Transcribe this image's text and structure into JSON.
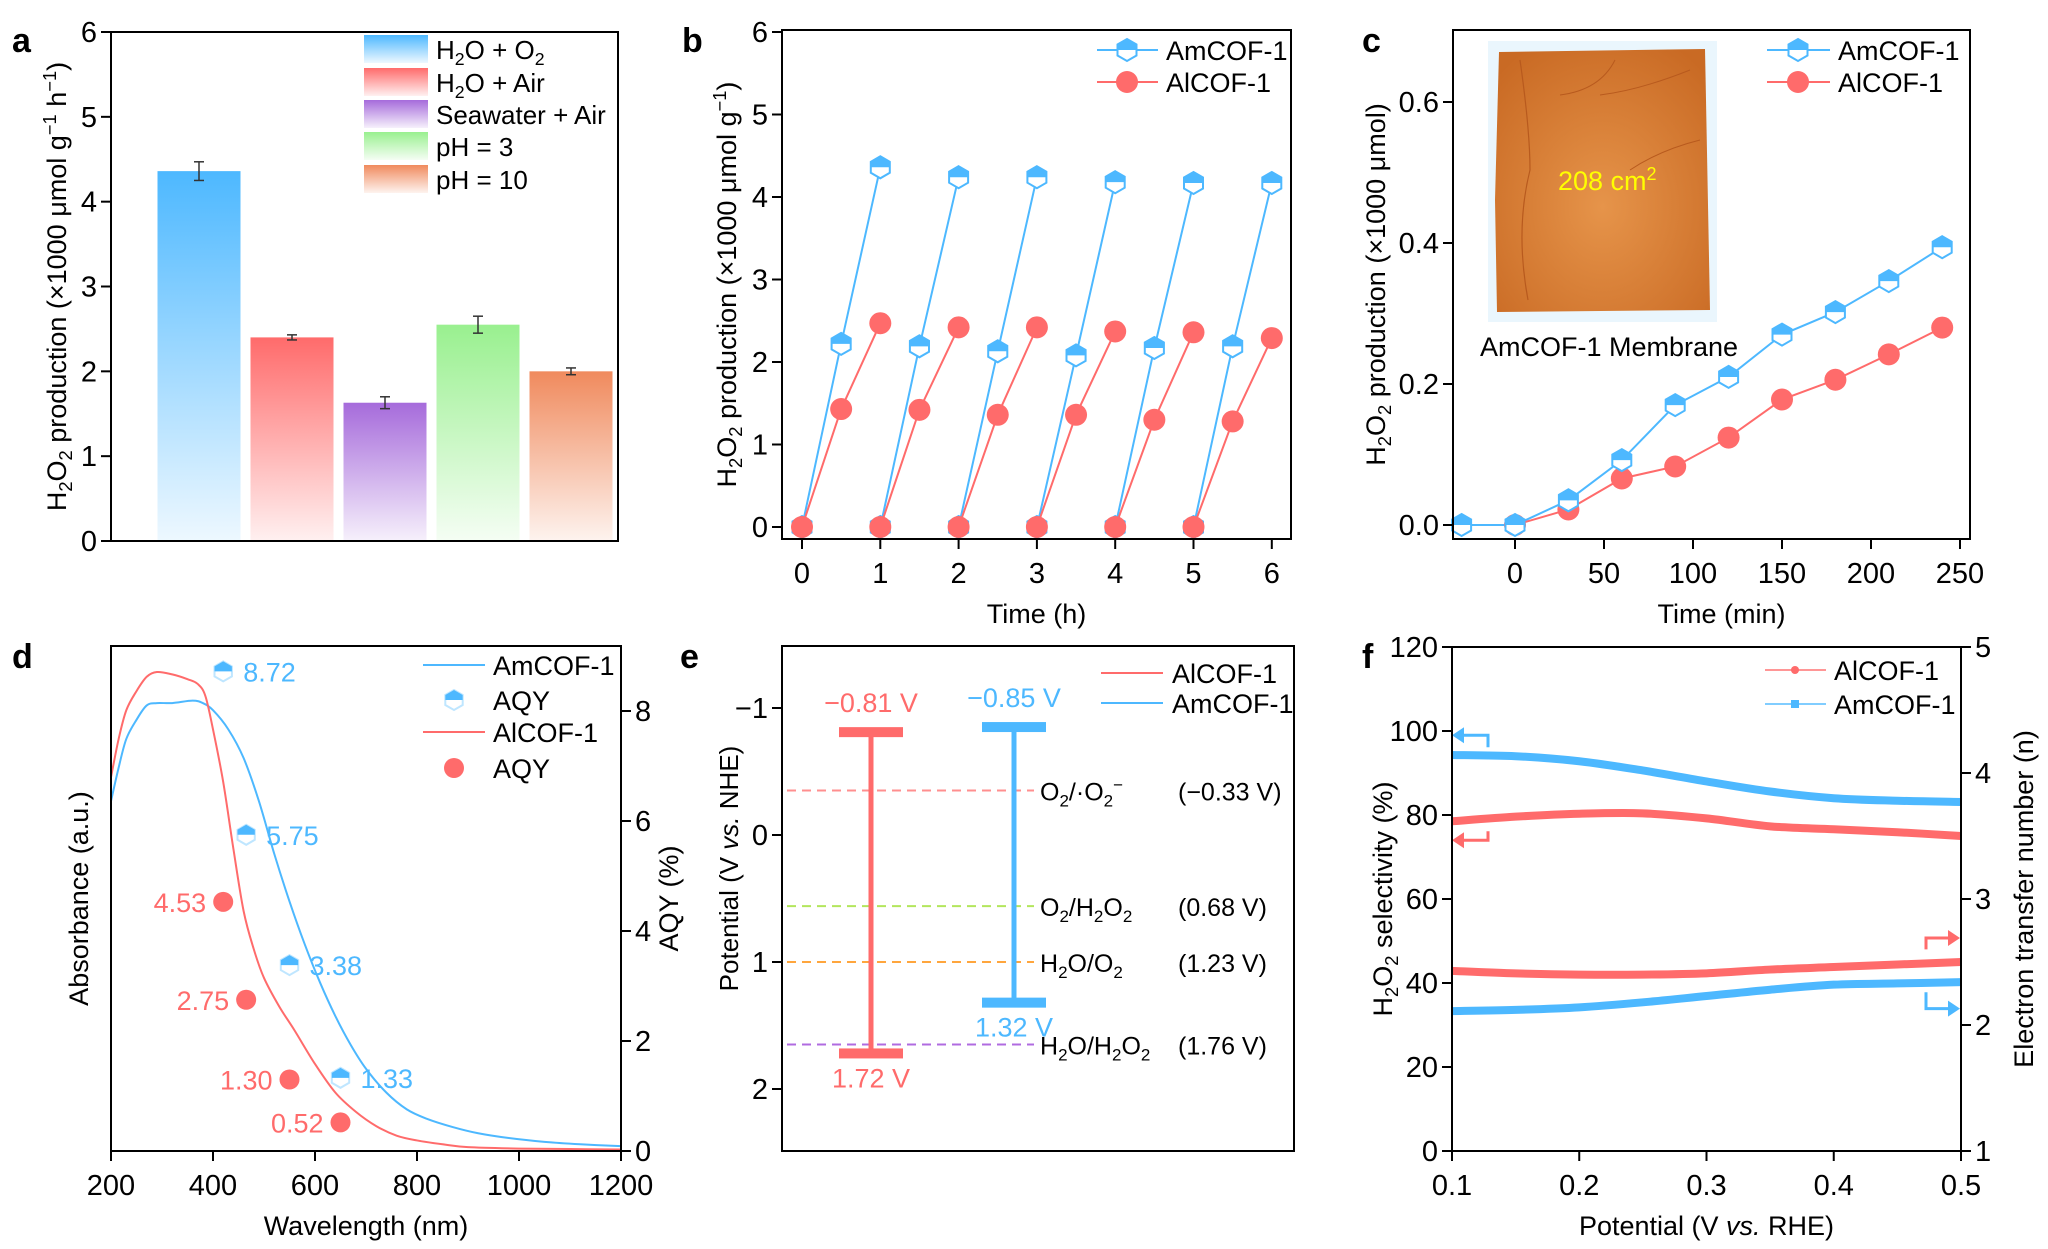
{
  "colors": {
    "blue": "#4DB8FF",
    "red": "#FF6B6B",
    "purple": "#A66BDB",
    "green": "#99F08F",
    "orange": "#F08A5D",
    "yellow": "#FFFF00",
    "dash_pink": "#FF8F8F",
    "dash_green": "#B3E65C",
    "dash_orange": "#FFA63D",
    "dash_purple": "#B06BE0",
    "membrane": "#D9782E",
    "membrane_bg": "#EAF6FD"
  },
  "chart_data": [
    {
      "panel": "a",
      "type": "bar",
      "xlabel": "",
      "ylabel": "H2O2 production (×1000 μmol g−1 h−1)",
      "ylabel_parts": [
        "H",
        "2",
        "O",
        "2",
        " production (×1000 μmol g",
        "−1",
        " h",
        "−1",
        ")"
      ],
      "ylim": [
        0,
        6
      ],
      "yticks": [
        0,
        1,
        2,
        3,
        4,
        5,
        6
      ],
      "categories": [
        "H2O + O2",
        "H2O + Air",
        "Seawater + Air",
        "pH = 3",
        "pH = 10"
      ],
      "legend": [
        {
          "parts": [
            "H",
            "2",
            "O + O",
            "2"
          ],
          "color": "blue"
        },
        {
          "parts": [
            "H",
            "2",
            "O + Air"
          ],
          "color": "red"
        },
        {
          "parts": [
            "Seawater + Air"
          ],
          "color": "purple"
        },
        {
          "parts": [
            "pH = 3"
          ],
          "color": "green"
        },
        {
          "parts": [
            "pH = 10"
          ],
          "color": "orange"
        }
      ],
      "legend_position": "top-right",
      "values": [
        4.36,
        2.4,
        1.63,
        2.55,
        2.0
      ],
      "errors": [
        0.11,
        0.03,
        0.07,
        0.1,
        0.04
      ],
      "colors": [
        "blue",
        "red",
        "purple",
        "green",
        "orange"
      ]
    },
    {
      "panel": "b",
      "type": "line",
      "xlabel": "Time (h)",
      "ylabel_parts": [
        "H",
        "2",
        "O",
        "2",
        " production (×1000 μmol g",
        "−1",
        ")"
      ],
      "xlim": [
        -0.25,
        6.25
      ],
      "ylim": [
        -0.15,
        6
      ],
      "xticks": [
        0,
        1,
        2,
        3,
        4,
        5,
        6
      ],
      "yticks": [
        0,
        1,
        2,
        3,
        4,
        5,
        6
      ],
      "legend_position": "top-right",
      "series": [
        {
          "name": "AmCOF-1",
          "color": "blue",
          "marker": "half-hexagon",
          "cycles": [
            [
              [
                0,
                0
              ],
              [
                0.5,
                2.22
              ],
              [
                1,
                4.36
              ]
            ],
            [
              [
                1,
                0
              ],
              [
                1.5,
                2.19
              ],
              [
                2,
                4.24
              ]
            ],
            [
              [
                2,
                0
              ],
              [
                2.5,
                2.13
              ],
              [
                3,
                4.24
              ]
            ],
            [
              [
                3,
                0
              ],
              [
                3.5,
                2.08
              ],
              [
                4,
                4.18
              ]
            ],
            [
              [
                4,
                0
              ],
              [
                4.5,
                2.17
              ],
              [
                5,
                4.17
              ]
            ],
            [
              [
                5,
                0
              ],
              [
                5.5,
                2.19
              ],
              [
                6,
                4.17
              ]
            ]
          ]
        },
        {
          "name": "AlCOF-1",
          "color": "red",
          "marker": "circle",
          "cycles": [
            [
              [
                0,
                0
              ],
              [
                0.5,
                1.43
              ],
              [
                1,
                2.47
              ]
            ],
            [
              [
                1,
                0
              ],
              [
                1.5,
                1.42
              ],
              [
                2,
                2.42
              ]
            ],
            [
              [
                2,
                0
              ],
              [
                2.5,
                1.36
              ],
              [
                3,
                2.42
              ]
            ],
            [
              [
                3,
                0
              ],
              [
                3.5,
                1.36
              ],
              [
                4,
                2.37
              ]
            ],
            [
              [
                4,
                0
              ],
              [
                4.5,
                1.3
              ],
              [
                5,
                2.36
              ]
            ],
            [
              [
                5,
                0
              ],
              [
                5.5,
                1.28
              ],
              [
                6,
                2.29
              ]
            ]
          ]
        }
      ]
    },
    {
      "panel": "c",
      "type": "line",
      "xlabel": "Time (min)",
      "ylabel_parts": [
        "H",
        "2",
        "O",
        "2",
        " production (×1000 μmol)"
      ],
      "xlim": [
        -35,
        250
      ],
      "ylim": [
        -0.02,
        0.7
      ],
      "xticks": [
        0,
        50,
        100,
        150,
        200,
        250
      ],
      "yticks": [
        0.0,
        0.2,
        0.4,
        0.6
      ],
      "ytick_labels": [
        "0.0",
        "0.2",
        "0.4",
        "0.6"
      ],
      "legend_position": "top-right",
      "inset": {
        "caption": "AmCOF-1 Membrane",
        "area_label": "208 cm",
        "area_sup": "2"
      },
      "series": [
        {
          "name": "AmCOF-1",
          "color": "blue",
          "marker": "half-hexagon",
          "x": [
            -30,
            0,
            30,
            60,
            90,
            120,
            150,
            180,
            210,
            240
          ],
          "y": [
            0.0,
            0.0,
            0.035,
            0.092,
            0.17,
            0.21,
            0.27,
            0.302,
            0.346,
            0.394
          ]
        },
        {
          "name": "AlCOF-1",
          "color": "red",
          "marker": "circle",
          "x": [
            0,
            30,
            60,
            90,
            120,
            150,
            180,
            210,
            240
          ],
          "y": [
            0.0,
            0.022,
            0.066,
            0.083,
            0.124,
            0.178,
            0.206,
            0.242,
            0.28
          ]
        }
      ]
    },
    {
      "panel": "d",
      "type": "line",
      "xlabel": "Wavelength (nm)",
      "ylabel": "Absorbance (a.u.)",
      "y2label": "AQY (%)",
      "xlim": [
        200,
        1200
      ],
      "xticks": [
        200,
        400,
        600,
        800,
        1000,
        1200
      ],
      "y2lim": [
        0,
        9.19
      ],
      "y2ticks": [
        0,
        2,
        4,
        6,
        8
      ],
      "legend_position": "top-right",
      "legend": [
        "AmCOF-1",
        "AQY",
        "AlCOF-1",
        "AQY"
      ],
      "absorbance": [
        {
          "name": "AmCOF-1",
          "color": "blue",
          "x": [
            200,
            215,
            230,
            250,
            270,
            290,
            320,
            360,
            380,
            400,
            430,
            460,
            490,
            520,
            550,
            580,
            610,
            640,
            670,
            700,
            740,
            780,
            820,
            870,
            920,
            980,
            1050,
            1120,
            1200
          ],
          "y": [
            0.73,
            0.8,
            0.86,
            0.9,
            0.93,
            0.935,
            0.935,
            0.94,
            0.935,
            0.92,
            0.88,
            0.82,
            0.73,
            0.62,
            0.52,
            0.43,
            0.35,
            0.28,
            0.22,
            0.17,
            0.12,
            0.085,
            0.065,
            0.048,
            0.035,
            0.025,
            0.017,
            0.012,
            0.008
          ]
        },
        {
          "name": "AlCOF-1",
          "color": "red",
          "x": [
            200,
            215,
            230,
            250,
            270,
            290,
            320,
            350,
            370,
            385,
            400,
            420,
            440,
            460,
            480,
            500,
            530,
            560,
            600,
            640,
            680,
            720,
            760,
            800,
            850,
            900,
            1000,
            1100,
            1200
          ],
          "y": [
            0.78,
            0.86,
            0.92,
            0.96,
            0.99,
            1.0,
            0.995,
            0.985,
            0.975,
            0.95,
            0.88,
            0.77,
            0.63,
            0.5,
            0.42,
            0.36,
            0.3,
            0.25,
            0.18,
            0.12,
            0.08,
            0.05,
            0.03,
            0.02,
            0.012,
            0.006,
            0.003,
            0.002,
            0.001
          ]
        }
      ],
      "aqy": [
        {
          "name": "AmCOF-1",
          "color": "blue",
          "marker": "half-hexagon",
          "x": [
            420,
            465,
            550,
            650
          ],
          "y": [
            8.72,
            5.75,
            3.38,
            1.33
          ],
          "labels": [
            "8.72",
            "5.75",
            "3.38",
            "1.33"
          ],
          "label_side": "right"
        },
        {
          "name": "AlCOF-1",
          "color": "red",
          "marker": "circle",
          "x": [
            420,
            465,
            550,
            650
          ],
          "y": [
            4.53,
            2.75,
            1.3,
            0.52
          ],
          "labels": [
            "4.53",
            "2.75",
            "1.30",
            "0.52"
          ],
          "label_side": "left"
        }
      ]
    },
    {
      "panel": "e",
      "type": "band-diagram",
      "ylabel": "Potential (V vs. NHE)",
      "ylabel_parts": [
        "Potential (V ",
        "vs.",
        " NHE)"
      ],
      "ylim": [
        2.49,
        -1.49
      ],
      "yticks": [
        -1,
        0,
        1,
        2
      ],
      "ytick_labels": [
        "−1",
        "0",
        "1",
        "2"
      ],
      "legend_position": "top-right",
      "legend": [
        {
          "name": "AlCOF-1",
          "color": "red"
        },
        {
          "name": "AmCOF-1",
          "color": "blue"
        }
      ],
      "bands": [
        {
          "name": "AlCOF-1",
          "color": "red",
          "cb": -0.81,
          "vb": 1.72,
          "cb_label": "−0.81 V",
          "vb_label": "1.72 V"
        },
        {
          "name": "AmCOF-1",
          "color": "blue",
          "cb": -0.85,
          "vb": 1.32,
          "cb_label": "−0.85 V",
          "vb_label": "1.32 V"
        }
      ],
      "reference_levels": [
        {
          "couple_parts": [
            "O",
            "2",
            "/·O",
            "2",
            "−"
          ],
          "value": -0.33,
          "value_label": "(−0.33 V)",
          "drawn_at": -0.35,
          "color": "dash_pink"
        },
        {
          "couple_parts": [
            "O",
            "2",
            "/H",
            "2",
            "O",
            "2"
          ],
          "value": 0.68,
          "value_label": "(0.68 V)",
          "drawn_at": 0.56,
          "color": "dash_green"
        },
        {
          "couple_parts": [
            "H",
            "2",
            "O/O",
            "2"
          ],
          "value": 1.23,
          "value_label": "(1.23 V)",
          "drawn_at": 1.0,
          "color": "dash_orange"
        },
        {
          "couple_parts": [
            "H",
            "2",
            "O/H",
            "2",
            "O",
            "2"
          ],
          "value": 1.76,
          "value_label": "(1.76 V)",
          "drawn_at": 1.65,
          "color": "dash_purple"
        }
      ]
    },
    {
      "panel": "f",
      "type": "line",
      "xlabel_parts": [
        "Potential (V ",
        "vs.",
        " RHE)"
      ],
      "ylabel_parts": [
        "H",
        "2",
        "O",
        "2",
        " selectivity (%)"
      ],
      "y2label": "Electron transfer number (n)",
      "xlim": [
        0.1,
        0.5
      ],
      "ylim": [
        0,
        120
      ],
      "y2lim": [
        1,
        5
      ],
      "xticks": [
        0.1,
        0.2,
        0.3,
        0.4,
        0.5
      ],
      "xtick_labels": [
        "0.1",
        "0.2",
        "0.3",
        "0.4",
        "0.5"
      ],
      "yticks": [
        0,
        20,
        40,
        60,
        80,
        100,
        120
      ],
      "y2ticks": [
        1,
        2,
        3,
        4,
        5
      ],
      "legend_position": "top-right",
      "legend": [
        {
          "name": "AlCOF-1",
          "color": "red",
          "marker": "circle"
        },
        {
          "name": "AmCOF-1",
          "color": "blue",
          "marker": "square"
        }
      ],
      "series": [
        {
          "name": "AmCOF-1 selectivity",
          "color": "blue",
          "axis": "left",
          "x": [
            0.1,
            0.15,
            0.2,
            0.25,
            0.3,
            0.35,
            0.4,
            0.45,
            0.5
          ],
          "y": [
            94.3,
            94.0,
            92.8,
            90.6,
            88.0,
            85.6,
            84.0,
            83.4,
            83.1
          ]
        },
        {
          "name": "AlCOF-1 selectivity",
          "color": "red",
          "axis": "left",
          "x": [
            0.1,
            0.15,
            0.2,
            0.25,
            0.3,
            0.35,
            0.4,
            0.45,
            0.5
          ],
          "y": [
            78.5,
            79.6,
            80.3,
            80.4,
            79.2,
            77.3,
            76.6,
            75.9,
            75.0
          ]
        },
        {
          "name": "AlCOF-1 n",
          "color": "red",
          "axis": "right",
          "x": [
            0.1,
            0.15,
            0.2,
            0.25,
            0.3,
            0.35,
            0.4,
            0.45,
            0.5
          ],
          "y": [
            2.43,
            2.41,
            2.4,
            2.4,
            2.41,
            2.44,
            2.46,
            2.48,
            2.5
          ]
        },
        {
          "name": "AmCOF-1 n",
          "color": "blue",
          "axis": "right",
          "x": [
            0.1,
            0.15,
            0.2,
            0.25,
            0.3,
            0.35,
            0.4,
            0.45,
            0.5
          ],
          "y": [
            2.11,
            2.12,
            2.14,
            2.18,
            2.23,
            2.28,
            2.32,
            2.33,
            2.34
          ]
        }
      ],
      "axis_arrows": [
        {
          "series": "AmCOF-1 selectivity",
          "direction": "left",
          "color": "blue"
        },
        {
          "series": "AlCOF-1 selectivity",
          "direction": "left",
          "color": "red"
        },
        {
          "series": "AlCOF-1 n",
          "direction": "right",
          "color": "red"
        },
        {
          "series": "AmCOF-1 n",
          "direction": "right",
          "color": "blue"
        }
      ]
    }
  ],
  "panel_labels": [
    "a",
    "b",
    "c",
    "d",
    "e",
    "f"
  ]
}
